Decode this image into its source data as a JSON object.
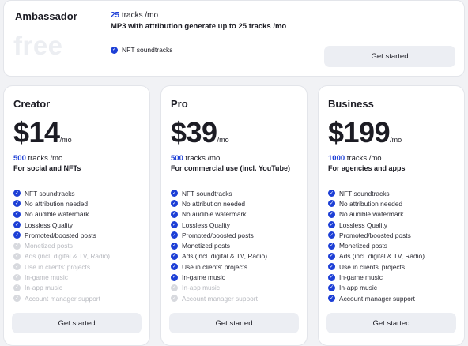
{
  "ambassador": {
    "title": "Ambassador",
    "price": "free",
    "tracks_count": "25",
    "tracks_unit": "tracks /mo",
    "description": "MP3 with attribution generate up to 25 tracks /mo",
    "feature": "NFT soundtracks",
    "button": "Get started"
  },
  "plans": [
    {
      "title": "Creator",
      "price": "$14",
      "per": "/mo",
      "tracks_count": "500",
      "tracks_unit": "tracks /mo",
      "subtitle": "For social and NFTs",
      "button": "Get started",
      "features": [
        {
          "label": "NFT soundtracks",
          "included": true
        },
        {
          "label": "No attribution needed",
          "included": true
        },
        {
          "label": "No audible watermark",
          "included": true
        },
        {
          "label": "Lossless Quality",
          "included": true
        },
        {
          "label": "Promoted/boosted posts",
          "included": true
        },
        {
          "label": "Monetized posts",
          "included": false
        },
        {
          "label": "Ads (incl. digital & TV, Radio)",
          "included": false
        },
        {
          "label": "Use in clients' projects",
          "included": false
        },
        {
          "label": "In-game music",
          "included": false
        },
        {
          "label": "In-app music",
          "included": false
        },
        {
          "label": "Account manager support",
          "included": false
        }
      ]
    },
    {
      "title": "Pro",
      "price": "$39",
      "per": "/mo",
      "tracks_count": "500",
      "tracks_unit": "tracks /mo",
      "subtitle": "For commercial use (incl. YouTube)",
      "button": "Get started",
      "features": [
        {
          "label": "NFT soundtracks",
          "included": true
        },
        {
          "label": "No attribution needed",
          "included": true
        },
        {
          "label": "No audible watermark",
          "included": true
        },
        {
          "label": "Lossless Quality",
          "included": true
        },
        {
          "label": "Promoted/boosted posts",
          "included": true
        },
        {
          "label": "Monetized posts",
          "included": true
        },
        {
          "label": "Ads (incl. digital & TV, Radio)",
          "included": true
        },
        {
          "label": "Use in clients' projects",
          "included": true
        },
        {
          "label": "In-game music",
          "included": true
        },
        {
          "label": "In-app music",
          "included": false
        },
        {
          "label": "Account manager support",
          "included": false
        }
      ]
    },
    {
      "title": "Business",
      "price": "$199",
      "per": "/mo",
      "tracks_count": "1000",
      "tracks_unit": "tracks /mo",
      "subtitle": "For agencies and apps",
      "button": "Get started",
      "features": [
        {
          "label": "NFT soundtracks",
          "included": true
        },
        {
          "label": "No attribution needed",
          "included": true
        },
        {
          "label": "No audible watermark",
          "included": true
        },
        {
          "label": "Lossless Quality",
          "included": true
        },
        {
          "label": "Promoted/boosted posts",
          "included": true
        },
        {
          "label": "Monetized posts",
          "included": true
        },
        {
          "label": "Ads (incl. digital & TV, Radio)",
          "included": true
        },
        {
          "label": "Use in clients' projects",
          "included": true
        },
        {
          "label": "In-game music",
          "included": true
        },
        {
          "label": "In-app music",
          "included": true
        },
        {
          "label": "Account manager support",
          "included": true
        }
      ]
    }
  ],
  "icons": {
    "feature_check": "check-circle-icon"
  },
  "colors": {
    "accent": "#1d3fd6",
    "disabled": "#d7d9de",
    "button_bg": "#eceef3"
  }
}
